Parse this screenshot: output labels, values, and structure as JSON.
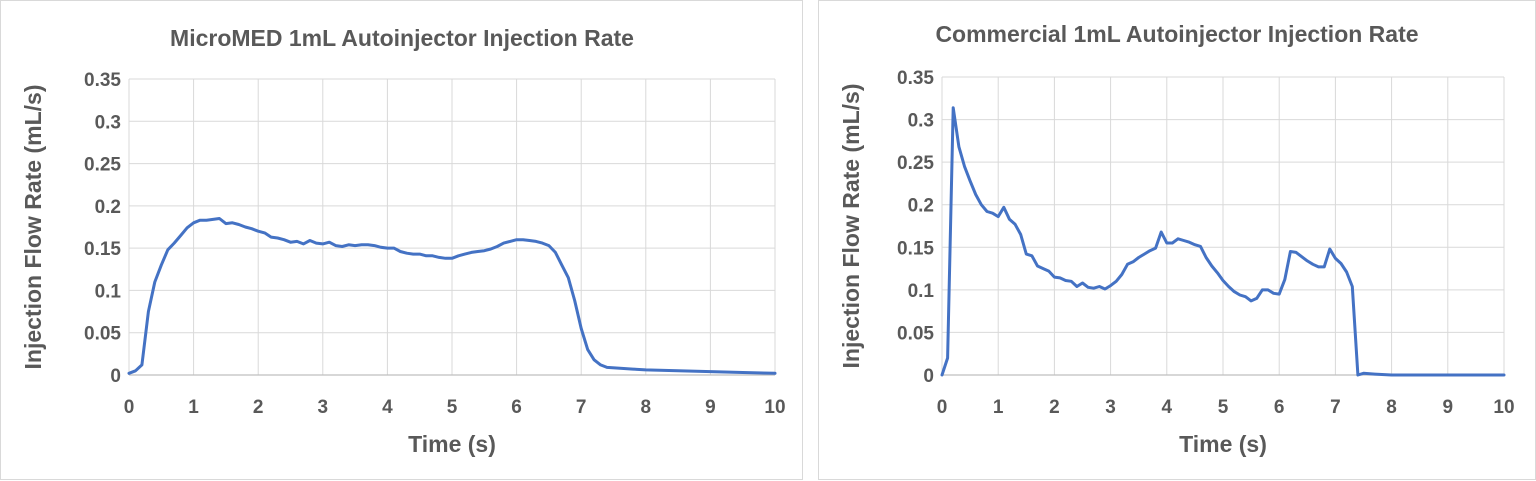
{
  "chart_data": [
    {
      "type": "line",
      "title": "MicroMED 1mL Autoinjector Injection Rate",
      "xlabel": "Time (s)",
      "ylabel": "Injection Flow Rate (mL/s)",
      "xlim": [
        0,
        10
      ],
      "ylim": [
        0,
        0.35
      ],
      "x_ticks": [
        "0",
        "1",
        "2",
        "3",
        "4",
        "5",
        "6",
        "7",
        "8",
        "9",
        "10"
      ],
      "y_ticks": [
        "0",
        "0.05",
        "0.1",
        "0.15",
        "0.2",
        "0.25",
        "0.3",
        "0.35"
      ],
      "grid": true,
      "legend": "none",
      "series_color": "#4472c4",
      "series": [
        {
          "name": "MicroMED",
          "x": [
            0,
            0.1,
            0.2,
            0.3,
            0.4,
            0.5,
            0.6,
            0.7,
            0.8,
            0.9,
            1.0,
            1.1,
            1.2,
            1.3,
            1.4,
            1.5,
            1.6,
            1.7,
            1.8,
            1.9,
            2.0,
            2.1,
            2.2,
            2.3,
            2.4,
            2.5,
            2.6,
            2.7,
            2.8,
            2.9,
            3.0,
            3.1,
            3.2,
            3.3,
            3.4,
            3.5,
            3.6,
            3.7,
            3.8,
            3.9,
            4.0,
            4.1,
            4.2,
            4.3,
            4.4,
            4.5,
            4.6,
            4.7,
            4.8,
            4.9,
            5.0,
            5.1,
            5.2,
            5.3,
            5.4,
            5.5,
            5.6,
            5.7,
            5.8,
            5.9,
            6.0,
            6.1,
            6.2,
            6.3,
            6.4,
            6.5,
            6.6,
            6.7,
            6.8,
            6.9,
            7.0,
            7.1,
            7.2,
            7.3,
            7.4,
            7.6,
            7.8,
            8.0,
            8.5,
            9.0,
            9.5,
            10.0
          ],
          "values": [
            0.002,
            0.005,
            0.012,
            0.075,
            0.11,
            0.13,
            0.148,
            0.156,
            0.165,
            0.174,
            0.18,
            0.183,
            0.183,
            0.184,
            0.185,
            0.179,
            0.18,
            0.178,
            0.175,
            0.173,
            0.17,
            0.168,
            0.163,
            0.162,
            0.16,
            0.157,
            0.158,
            0.155,
            0.159,
            0.156,
            0.155,
            0.157,
            0.153,
            0.152,
            0.154,
            0.153,
            0.154,
            0.154,
            0.153,
            0.151,
            0.15,
            0.15,
            0.146,
            0.144,
            0.143,
            0.143,
            0.141,
            0.141,
            0.139,
            0.138,
            0.138,
            0.141,
            0.143,
            0.145,
            0.146,
            0.147,
            0.149,
            0.152,
            0.156,
            0.158,
            0.16,
            0.16,
            0.159,
            0.158,
            0.156,
            0.153,
            0.145,
            0.13,
            0.115,
            0.088,
            0.055,
            0.03,
            0.018,
            0.012,
            0.009,
            0.008,
            0.007,
            0.006,
            0.005,
            0.004,
            0.003,
            0.002
          ]
        }
      ]
    },
    {
      "type": "line",
      "title": "Commercial 1mL Autoinjector Injection Rate",
      "xlabel": "Time (s)",
      "ylabel": "Injection Flow Rate (mL/s)",
      "xlim": [
        0,
        10
      ],
      "ylim": [
        0,
        0.35
      ],
      "x_ticks": [
        "0",
        "1",
        "2",
        "3",
        "4",
        "5",
        "6",
        "7",
        "8",
        "9",
        "10"
      ],
      "y_ticks": [
        "0",
        "0.05",
        "0.1",
        "0.15",
        "0.2",
        "0.25",
        "0.3",
        "0.35"
      ],
      "grid": true,
      "legend": "none",
      "series_color": "#4472c4",
      "series": [
        {
          "name": "Commercial",
          "x": [
            0,
            0.1,
            0.2,
            0.3,
            0.4,
            0.5,
            0.6,
            0.7,
            0.8,
            0.9,
            1.0,
            1.1,
            1.2,
            1.3,
            1.4,
            1.5,
            1.6,
            1.7,
            1.8,
            1.9,
            2.0,
            2.1,
            2.2,
            2.3,
            2.4,
            2.5,
            2.6,
            2.7,
            2.8,
            2.9,
            3.0,
            3.1,
            3.2,
            3.3,
            3.4,
            3.5,
            3.6,
            3.7,
            3.8,
            3.9,
            4.0,
            4.1,
            4.2,
            4.3,
            4.4,
            4.5,
            4.6,
            4.7,
            4.8,
            4.9,
            5.0,
            5.1,
            5.2,
            5.3,
            5.4,
            5.5,
            5.6,
            5.7,
            5.8,
            5.9,
            6.0,
            6.1,
            6.2,
            6.3,
            6.4,
            6.5,
            6.6,
            6.7,
            6.8,
            6.9,
            7.0,
            7.1,
            7.2,
            7.3,
            7.4,
            7.5,
            7.7,
            8.0,
            9.0,
            10.0
          ],
          "values": [
            0,
            0.02,
            0.314,
            0.268,
            0.245,
            0.228,
            0.212,
            0.2,
            0.192,
            0.19,
            0.186,
            0.197,
            0.183,
            0.177,
            0.165,
            0.142,
            0.14,
            0.128,
            0.125,
            0.122,
            0.115,
            0.114,
            0.111,
            0.11,
            0.104,
            0.108,
            0.103,
            0.102,
            0.104,
            0.101,
            0.105,
            0.11,
            0.118,
            0.13,
            0.133,
            0.138,
            0.142,
            0.146,
            0.149,
            0.168,
            0.155,
            0.155,
            0.16,
            0.158,
            0.156,
            0.153,
            0.151,
            0.138,
            0.128,
            0.12,
            0.111,
            0.104,
            0.098,
            0.094,
            0.092,
            0.087,
            0.09,
            0.1,
            0.1,
            0.096,
            0.095,
            0.112,
            0.145,
            0.144,
            0.139,
            0.134,
            0.13,
            0.127,
            0.127,
            0.148,
            0.137,
            0.131,
            0.121,
            0.104,
            0.0,
            0.002,
            0.001,
            0.0,
            0.0,
            0.0
          ]
        }
      ]
    }
  ]
}
